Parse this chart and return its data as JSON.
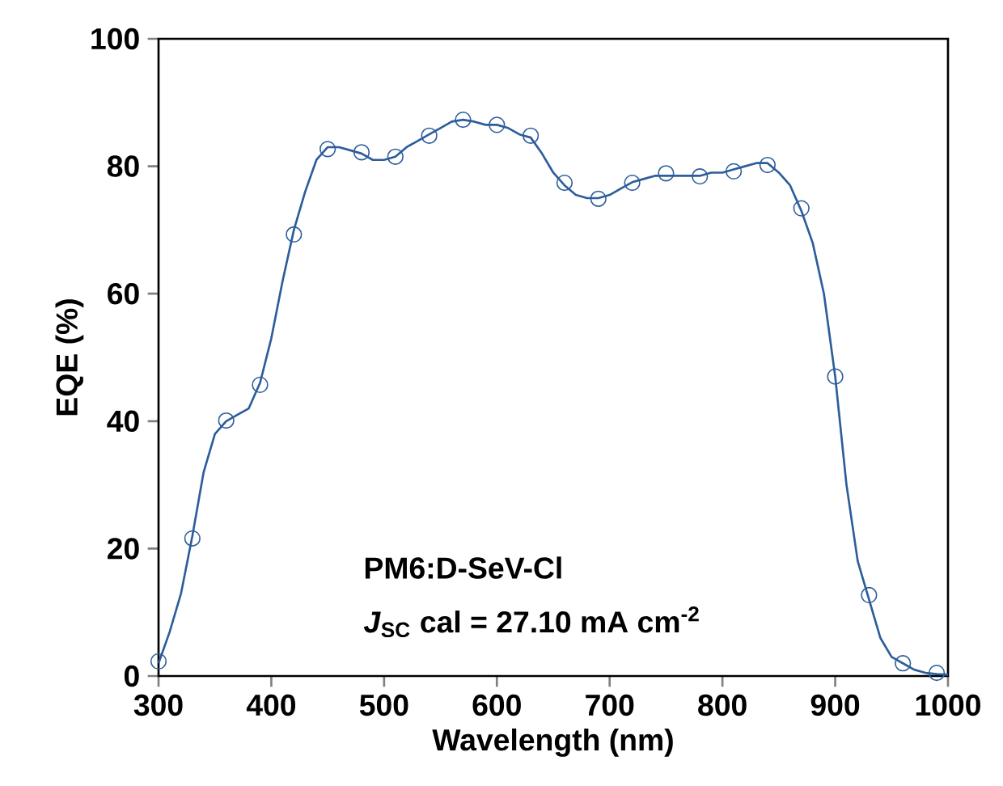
{
  "chart_data": {
    "type": "line",
    "xlabel": "Wavelength (nm)",
    "ylabel": "EQE (%)",
    "xlim": [
      300,
      1000
    ],
    "ylim": [
      0,
      100
    ],
    "xticks": [
      300,
      400,
      500,
      600,
      700,
      800,
      900,
      1000
    ],
    "yticks": [
      0,
      20,
      40,
      60,
      80,
      100
    ],
    "series": [
      {
        "color": "#2d5d9a",
        "marker": "none",
        "line_style": "solid",
        "x": [
          300,
          310,
          320,
          330,
          340,
          350,
          360,
          370,
          380,
          390,
          400,
          410,
          420,
          430,
          440,
          450,
          460,
          470,
          480,
          490,
          500,
          510,
          520,
          530,
          540,
          550,
          560,
          570,
          580,
          590,
          600,
          610,
          620,
          630,
          640,
          650,
          660,
          670,
          680,
          690,
          700,
          710,
          720,
          730,
          740,
          750,
          760,
          770,
          780,
          790,
          800,
          810,
          820,
          830,
          840,
          850,
          860,
          870,
          880,
          890,
          900,
          910,
          920,
          930,
          940,
          950,
          960,
          970,
          980,
          990,
          1000
        ],
        "values": [
          2,
          7,
          13,
          22,
          32,
          38,
          40,
          41,
          42,
          46,
          53,
          62,
          70,
          76,
          81,
          83,
          83,
          82.5,
          82,
          81,
          81,
          81.5,
          83,
          84,
          85,
          86,
          87,
          87.3,
          87,
          86.5,
          86.5,
          86,
          85,
          84.5,
          82,
          79,
          77,
          75.5,
          75,
          75,
          75.5,
          76.5,
          77.5,
          78,
          78.5,
          78.5,
          78.5,
          78.5,
          78.5,
          79,
          79,
          79.5,
          80,
          80.5,
          80.5,
          79,
          77,
          73,
          68,
          60,
          47,
          30,
          18,
          12,
          6,
          3,
          2,
          1,
          0.5,
          0.3,
          0.2
        ]
      },
      {
        "type": "scatter",
        "color": "#2d5d9a",
        "marker": "circle",
        "x": [
          300,
          330,
          360,
          390,
          420,
          450,
          480,
          510,
          540,
          570,
          600,
          630,
          660,
          690,
          720,
          750,
          780,
          810,
          840,
          870,
          900,
          930,
          960,
          990
        ],
        "values": [
          2.3,
          21.6,
          40.1,
          45.7,
          69.3,
          82.7,
          82.2,
          81.5,
          84.8,
          87.3,
          86.5,
          84.8,
          77.4,
          74.9,
          77.4,
          78.9,
          78.4,
          79.2,
          80.2,
          73.4,
          47.0,
          12.7,
          2.0,
          0.5
        ]
      }
    ],
    "annotations": [
      "PM6:D-SeV-Cl",
      "*J*$_{SC}$ cal = 27.10 mA cm$^{-2}$"
    ]
  }
}
